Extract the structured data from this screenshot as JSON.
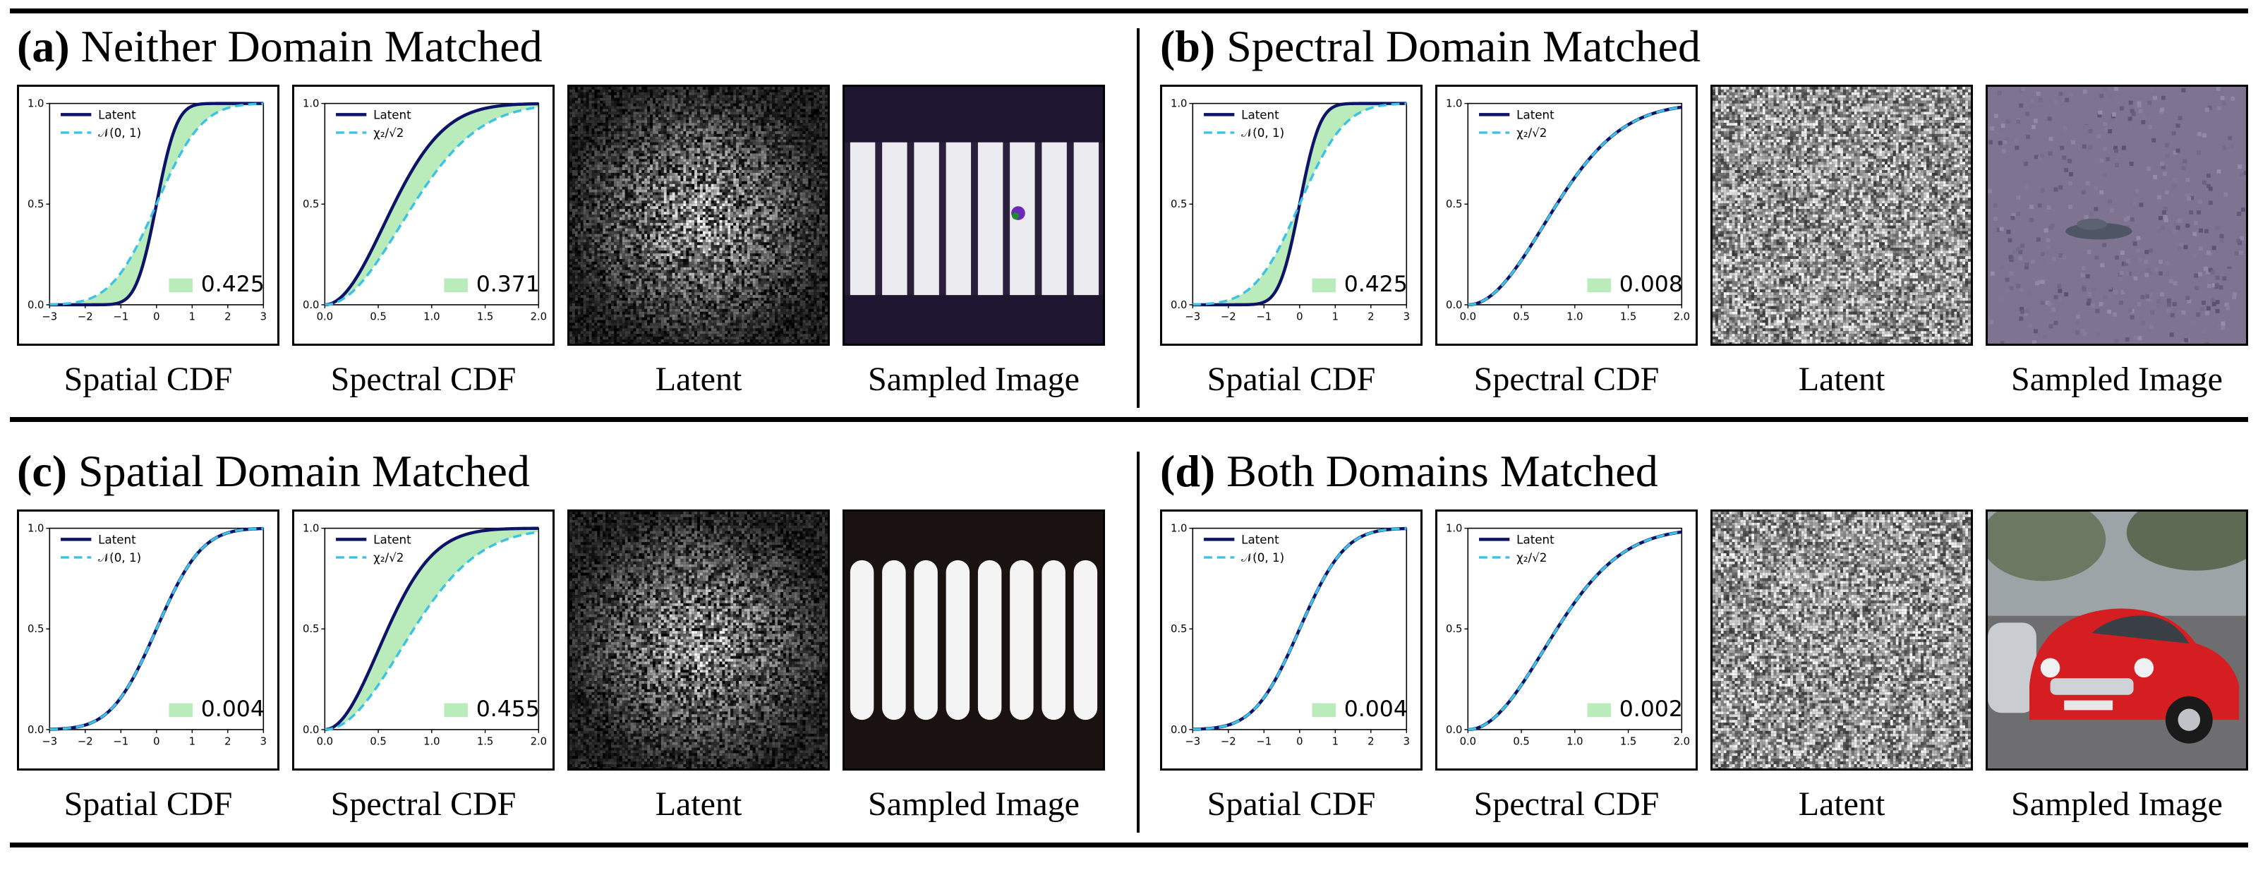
{
  "caption_labels": [
    "Spatial CDF",
    "Spectral CDF",
    "Latent",
    "Sampled Image"
  ],
  "legend_labels": {
    "latent": "Latent",
    "spatial_ref": "𝒩(0, 1)",
    "spectral_ref": "χ₂/√2"
  },
  "colors": {
    "latent": "#0d1366",
    "reference": "#3ec1e6",
    "fill": "#b9ebbb"
  },
  "panels": [
    {
      "tag": "(a)",
      "title": "Neither Domain Matched",
      "spatial_value": "0.425",
      "spectral_value": "0.371",
      "latent_kind": "radial",
      "sample_kind": "stripes-gray"
    },
    {
      "tag": "(b)",
      "title": "Spectral Domain Matched",
      "spatial_value": "0.425",
      "spectral_value": "0.008",
      "latent_kind": "uniform",
      "sample_kind": "purple-car"
    },
    {
      "tag": "(c)",
      "title": "Spatial Domain Matched",
      "spatial_value": "0.004",
      "spectral_value": "0.455",
      "latent_kind": "radial",
      "sample_kind": "stripes-glow"
    },
    {
      "tag": "(d)",
      "title": "Both Domains Matched",
      "spatial_value": "0.004",
      "spectral_value": "0.002",
      "latent_kind": "uniform",
      "sample_kind": "red-car"
    }
  ],
  "chart_data": [
    {
      "type": "line",
      "panel": "(a)",
      "title": "Spatial CDF",
      "xlim": [
        -3,
        3
      ],
      "ylim": [
        0,
        1
      ],
      "xticks": [
        "−3",
        "−2",
        "−1",
        "0",
        "1",
        "2",
        "3"
      ],
      "yticks": [
        "0.0",
        "0.5",
        "1.0"
      ],
      "series": [
        {
          "name": "Latent",
          "cdf": "normal",
          "sigma": 0.45
        },
        {
          "name": "𝒩(0, 1)",
          "cdf": "normal",
          "sigma": 1.0
        }
      ],
      "annotation": "0.425"
    },
    {
      "type": "line",
      "panel": "(a)",
      "title": "Spectral CDF",
      "xlim": [
        0,
        2
      ],
      "ylim": [
        0,
        1
      ],
      "xticks": [
        "0.0",
        "0.5",
        "1.0",
        "1.5",
        "2.0"
      ],
      "yticks": [
        "0.0",
        "0.5",
        "1.0"
      ],
      "series": [
        {
          "name": "Latent",
          "cdf": "rayleigh",
          "sigma": 0.55
        },
        {
          "name": "χ₂/√2",
          "cdf": "rayleigh",
          "sigma": 0.7071
        }
      ],
      "annotation": "0.371"
    },
    {
      "type": "line",
      "panel": "(b)",
      "title": "Spatial CDF",
      "xlim": [
        -3,
        3
      ],
      "ylim": [
        0,
        1
      ],
      "xticks": [
        "−3",
        "−2",
        "−1",
        "0",
        "1",
        "2",
        "3"
      ],
      "yticks": [
        "0.0",
        "0.5",
        "1.0"
      ],
      "series": [
        {
          "name": "Latent",
          "cdf": "normal",
          "sigma": 0.45
        },
        {
          "name": "𝒩(0, 1)",
          "cdf": "normal",
          "sigma": 1.0
        }
      ],
      "annotation": "0.425"
    },
    {
      "type": "line",
      "panel": "(b)",
      "title": "Spectral CDF",
      "xlim": [
        0,
        2
      ],
      "ylim": [
        0,
        1
      ],
      "xticks": [
        "0.0",
        "0.5",
        "1.0",
        "1.5",
        "2.0"
      ],
      "yticks": [
        "0.0",
        "0.5",
        "1.0"
      ],
      "series": [
        {
          "name": "Latent",
          "cdf": "rayleigh",
          "sigma": 0.7071
        },
        {
          "name": "χ₂/√2",
          "cdf": "rayleigh",
          "sigma": 0.7071
        }
      ],
      "annotation": "0.008"
    },
    {
      "type": "line",
      "panel": "(c)",
      "title": "Spatial CDF",
      "xlim": [
        -3,
        3
      ],
      "ylim": [
        0,
        1
      ],
      "xticks": [
        "−3",
        "−2",
        "−1",
        "0",
        "1",
        "2",
        "3"
      ],
      "yticks": [
        "0.0",
        "0.5",
        "1.0"
      ],
      "series": [
        {
          "name": "Latent",
          "cdf": "normal",
          "sigma": 1.0
        },
        {
          "name": "𝒩(0, 1)",
          "cdf": "normal",
          "sigma": 1.0
        }
      ],
      "annotation": "0.004"
    },
    {
      "type": "line",
      "panel": "(c)",
      "title": "Spectral CDF",
      "xlim": [
        0,
        2
      ],
      "ylim": [
        0,
        1
      ],
      "xticks": [
        "0.0",
        "0.5",
        "1.0",
        "1.5",
        "2.0"
      ],
      "yticks": [
        "0.0",
        "0.5",
        "1.0"
      ],
      "series": [
        {
          "name": "Latent",
          "cdf": "rayleigh",
          "sigma": 0.5
        },
        {
          "name": "χ₂/√2",
          "cdf": "rayleigh",
          "sigma": 0.7071
        }
      ],
      "annotation": "0.455"
    },
    {
      "type": "line",
      "panel": "(d)",
      "title": "Spatial CDF",
      "xlim": [
        -3,
        3
      ],
      "ylim": [
        0,
        1
      ],
      "xticks": [
        "−3",
        "−2",
        "−1",
        "0",
        "1",
        "2",
        "3"
      ],
      "yticks": [
        "0.0",
        "0.5",
        "1.0"
      ],
      "series": [
        {
          "name": "Latent",
          "cdf": "normal",
          "sigma": 1.0
        },
        {
          "name": "𝒩(0, 1)",
          "cdf": "normal",
          "sigma": 1.0
        }
      ],
      "annotation": "0.004"
    },
    {
      "type": "line",
      "panel": "(d)",
      "title": "Spectral CDF",
      "xlim": [
        0,
        2
      ],
      "ylim": [
        0,
        1
      ],
      "xticks": [
        "0.0",
        "0.5",
        "1.0",
        "1.5",
        "2.0"
      ],
      "yticks": [
        "0.0",
        "0.5",
        "1.0"
      ],
      "series": [
        {
          "name": "Latent",
          "cdf": "rayleigh",
          "sigma": 0.7071
        },
        {
          "name": "χ₂/√2",
          "cdf": "rayleigh",
          "sigma": 0.7071
        }
      ],
      "annotation": "0.002"
    }
  ]
}
